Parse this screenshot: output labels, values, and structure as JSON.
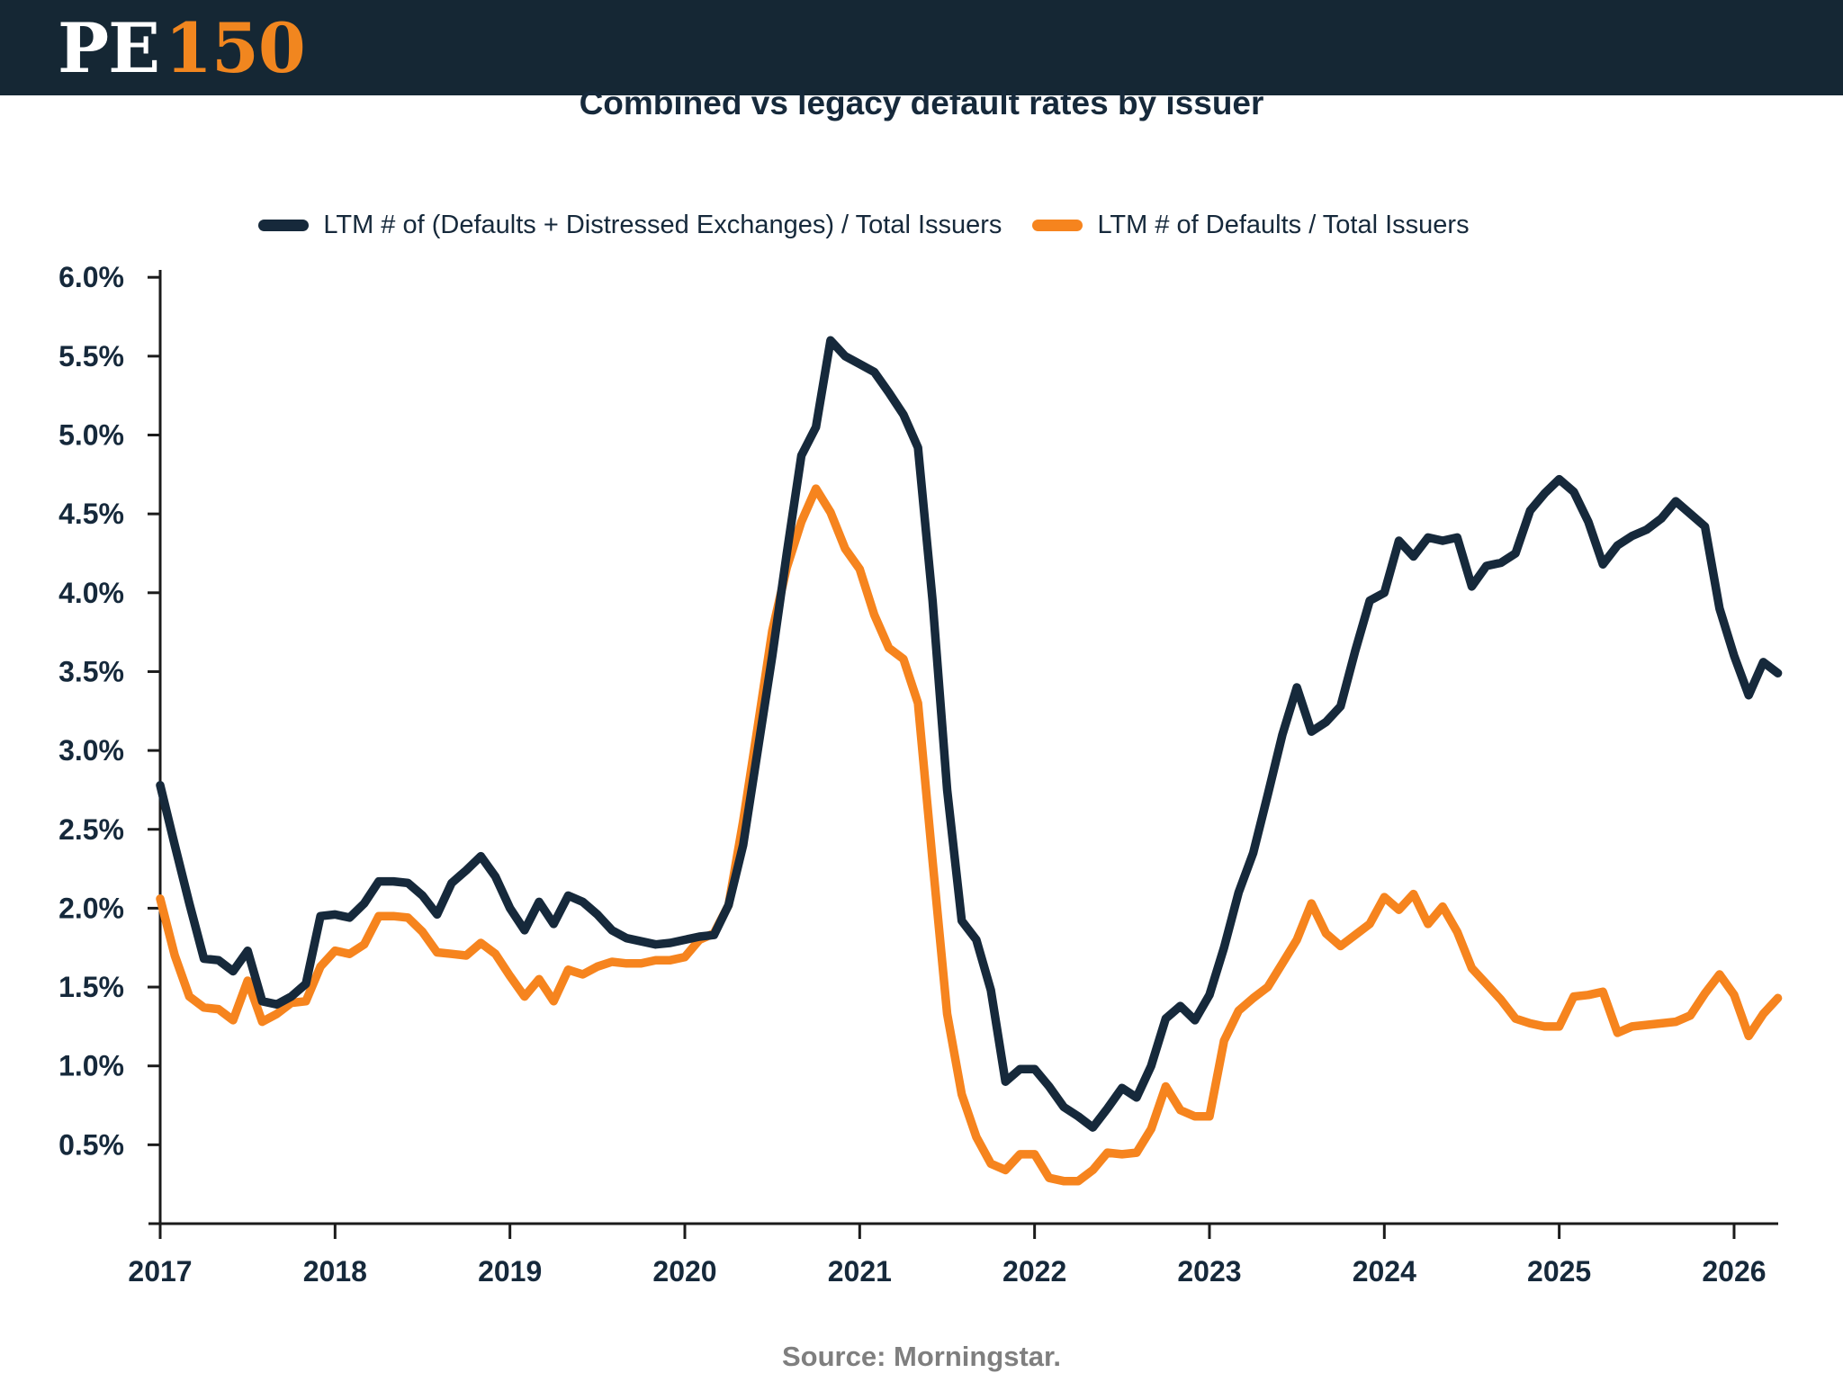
{
  "header": {
    "logo": {
      "pe": "PE",
      "num": "150"
    }
  },
  "chart": {
    "title": "Combined vs legacy default rates by issuer",
    "source": "Source: Morningstar."
  },
  "chart_data": {
    "type": "line",
    "title": "Combined vs legacy default rates by issuer",
    "x_unit": "monthly",
    "x_start": "2017-01",
    "x_end": "2026-04",
    "x_tick_labels": [
      "2017",
      "2018",
      "2019",
      "2020",
      "2021",
      "2022",
      "2023",
      "2024",
      "2025",
      "2026"
    ],
    "y_tick_labels": [
      "0.5%",
      "1.0%",
      "1.5%",
      "2.0%",
      "2.5%",
      "3.0%",
      "3.5%",
      "4.0%",
      "4.5%",
      "5.0%",
      "5.5%",
      "6.0%"
    ],
    "y_tick_values": [
      0.5,
      1.0,
      1.5,
      2.0,
      2.5,
      3.0,
      3.5,
      4.0,
      4.5,
      5.0,
      5.5,
      6.0
    ],
    "ylim": [
      0,
      6.2
    ],
    "grid": false,
    "legend_position": "top",
    "axis_color": "#1b1b1b",
    "label_color": "#16293B",
    "series": [
      {
        "name": "LTM # of (Defaults + Distressed Exchanges) / Total Issuers",
        "color": "#16293B",
        "values": [
          2.78,
          2.4,
          2.03,
          1.68,
          1.67,
          1.6,
          1.73,
          1.41,
          1.39,
          1.44,
          1.52,
          1.95,
          1.96,
          1.94,
          2.03,
          2.17,
          2.17,
          2.16,
          2.08,
          1.96,
          2.16,
          2.24,
          2.33,
          2.2,
          2.0,
          1.86,
          2.04,
          1.9,
          2.08,
          2.04,
          1.96,
          1.86,
          1.81,
          1.79,
          1.77,
          1.78,
          1.8,
          1.82,
          1.83,
          2.02,
          2.4,
          3.0,
          3.6,
          4.25,
          4.87,
          5.05,
          5.6,
          5.5,
          5.45,
          5.4,
          5.27,
          5.13,
          4.92,
          3.95,
          2.75,
          1.92,
          1.8,
          1.48,
          0.9,
          0.98,
          0.98,
          0.87,
          0.74,
          0.68,
          0.61,
          0.73,
          0.86,
          0.8,
          1.0,
          1.3,
          1.38,
          1.29,
          1.45,
          1.75,
          2.1,
          2.35,
          2.72,
          3.1,
          3.4,
          3.12,
          3.18,
          3.28,
          3.63,
          3.95,
          4.0,
          4.33,
          4.23,
          4.35,
          4.33,
          4.35,
          4.04,
          4.17,
          4.19,
          4.25,
          4.52,
          4.63,
          4.72,
          4.64,
          4.45,
          4.18,
          4.3,
          4.36,
          4.4,
          4.47,
          4.58,
          4.5,
          4.42,
          3.9,
          3.6,
          3.35,
          3.56,
          3.49
        ]
      },
      {
        "name": "LTM # of Defaults / Total Issuers",
        "color": "#F6841E",
        "values": [
          2.06,
          1.7,
          1.44,
          1.37,
          1.36,
          1.29,
          1.54,
          1.28,
          1.33,
          1.4,
          1.41,
          1.63,
          1.73,
          1.71,
          1.77,
          1.95,
          1.95,
          1.94,
          1.85,
          1.72,
          1.71,
          1.7,
          1.78,
          1.71,
          1.57,
          1.44,
          1.55,
          1.41,
          1.61,
          1.58,
          1.63,
          1.66,
          1.65,
          1.65,
          1.67,
          1.67,
          1.69,
          1.8,
          1.84,
          2.02,
          2.55,
          3.15,
          3.76,
          4.16,
          4.45,
          4.66,
          4.51,
          4.28,
          4.15,
          3.86,
          3.65,
          3.58,
          3.3,
          2.3,
          1.33,
          0.82,
          0.55,
          0.38,
          0.34,
          0.44,
          0.44,
          0.29,
          0.27,
          0.27,
          0.34,
          0.45,
          0.44,
          0.45,
          0.6,
          0.87,
          0.72,
          0.68,
          0.68,
          1.16,
          1.35,
          1.43,
          1.5,
          1.65,
          1.8,
          2.03,
          1.84,
          1.76,
          1.83,
          1.9,
          2.07,
          1.99,
          2.09,
          1.9,
          2.01,
          1.85,
          1.62,
          1.52,
          1.42,
          1.3,
          1.27,
          1.25,
          1.25,
          1.44,
          1.45,
          1.47,
          1.21,
          1.25,
          1.26,
          1.27,
          1.28,
          1.32,
          1.46,
          1.58,
          1.45,
          1.19,
          1.33,
          1.43
        ]
      }
    ]
  }
}
